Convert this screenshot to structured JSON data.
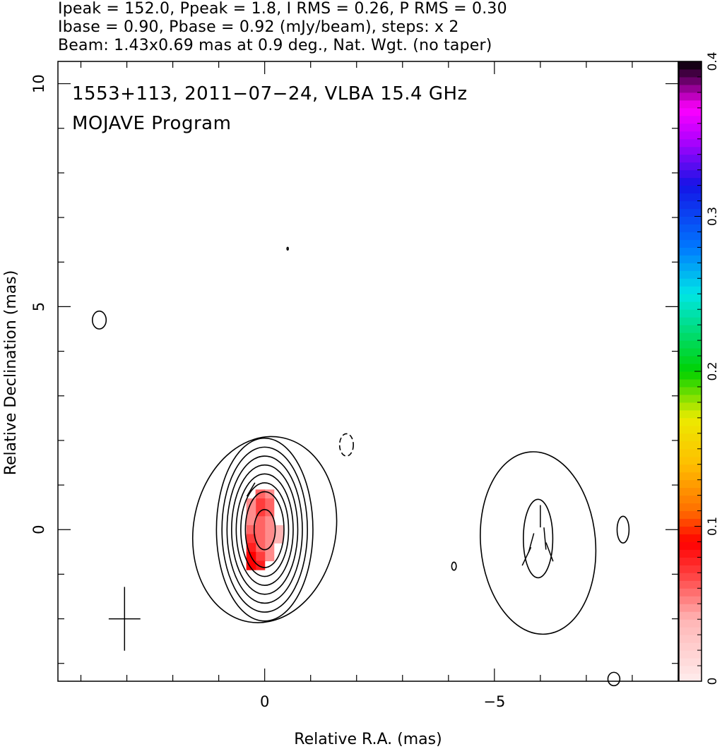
{
  "header": {
    "line1": "Ipeak = 152.0, Ppeak = 1.8, I RMS = 0.26, P RMS = 0.30",
    "line2": "Ibase = 0.90, Pbase = 0.92 (mJy/beam), steps: x 2",
    "line3": "Beam: 1.43x0.69 mas at 0.9 deg., Nat. Wgt. (no taper)"
  },
  "chart_data": {
    "type": "heatmap",
    "title": "1553+113, 2011−07−24, VLBA 15.4 GHz",
    "subtitle": "MOJAVE Program",
    "xlabel": "Relative R.A. (mas)",
    "ylabel": "Relative Declination (mas)",
    "xlim": [
      4.5,
      -9.0
    ],
    "ylim": [
      -3.4,
      10.5
    ],
    "xticks": [
      {
        "value": 0,
        "label": "0"
      },
      {
        "value": -5,
        "label": "−5"
      }
    ],
    "yticks": [
      {
        "value": 0,
        "label": "0"
      },
      {
        "value": 5,
        "label": "5"
      },
      {
        "value": 10,
        "label": "10"
      }
    ],
    "colorbar": {
      "range": [
        0,
        0.4
      ],
      "ticks": [
        {
          "value": 0,
          "label": "0"
        },
        {
          "value": 0.1,
          "label": "0.1"
        },
        {
          "value": 0.2,
          "label": "0.2"
        },
        {
          "value": 0.3,
          "label": "0.3"
        },
        {
          "value": 0.4,
          "label": "0.4"
        }
      ]
    },
    "core_contours": [
      {
        "x": 0.0,
        "y": 0.0,
        "rx": 1.55,
        "ry": 2.1,
        "tilt": 10
      },
      {
        "x": 0.0,
        "y": 0.0,
        "rx": 1.05,
        "ry": 2.05
      },
      {
        "x": 0.0,
        "y": 0.0,
        "rx": 0.93,
        "ry": 1.85
      },
      {
        "x": 0.0,
        "y": 0.0,
        "rx": 0.82,
        "ry": 1.65
      },
      {
        "x": 0.0,
        "y": 0.0,
        "rx": 0.72,
        "ry": 1.45
      },
      {
        "x": 0.0,
        "y": 0.0,
        "rx": 0.62,
        "ry": 1.25
      },
      {
        "x": 0.0,
        "y": 0.0,
        "rx": 0.52,
        "ry": 1.05
      },
      {
        "x": 0.0,
        "y": 0.0,
        "rx": 0.42,
        "ry": 0.85
      },
      {
        "x": 0.0,
        "y": 0.0,
        "rx": 0.23,
        "ry": 0.45
      }
    ],
    "jet_contours": [
      {
        "x": -5.95,
        "y": -0.3,
        "rx": 1.25,
        "ry": 2.05,
        "tilt": -5
      },
      {
        "x": -5.95,
        "y": -0.2,
        "rx": 0.32,
        "ry": 0.88
      }
    ],
    "small_contours": [
      {
        "x": 3.6,
        "y": 4.7,
        "rx": 0.15,
        "ry": 0.2,
        "dashed": false
      },
      {
        "x": -1.78,
        "y": 1.9,
        "rx": 0.15,
        "ry": 0.25,
        "dashed": true
      },
      {
        "x": -4.12,
        "y": -0.82,
        "rx": 0.05,
        "ry": 0.09,
        "dashed": false
      },
      {
        "x": -7.8,
        "y": 0.0,
        "rx": 0.13,
        "ry": 0.3,
        "dashed": false
      },
      {
        "x": -7.6,
        "y": -3.35,
        "rx": 0.13,
        "ry": 0.15,
        "dashed": false
      },
      {
        "x": -0.5,
        "y": 6.3,
        "rx": 0.015,
        "ry": 0.03,
        "dashed": false
      }
    ],
    "polarization_pixels": [
      {
        "x": -0.1,
        "y": 0.8,
        "level": 0.05
      },
      {
        "x": 0.1,
        "y": 0.8,
        "level": 0.06
      },
      {
        "x": -0.1,
        "y": 0.6,
        "level": 0.06
      },
      {
        "x": 0.1,
        "y": 0.6,
        "level": 0.07
      },
      {
        "x": 0.3,
        "y": 0.6,
        "level": 0.05
      },
      {
        "x": -0.1,
        "y": 0.4,
        "level": 0.06
      },
      {
        "x": 0.1,
        "y": 0.4,
        "level": 0.07
      },
      {
        "x": 0.3,
        "y": 0.4,
        "level": 0.05
      },
      {
        "x": -0.1,
        "y": 0.2,
        "level": 0.05
      },
      {
        "x": 0.1,
        "y": 0.2,
        "level": 0.06
      },
      {
        "x": 0.3,
        "y": 0.2,
        "level": 0.05
      },
      {
        "x": -0.3,
        "y": 0.0,
        "level": 0.04
      },
      {
        "x": -0.1,
        "y": 0.0,
        "level": 0.05
      },
      {
        "x": 0.1,
        "y": 0.0,
        "level": 0.06
      },
      {
        "x": 0.3,
        "y": 0.0,
        "level": 0.06
      },
      {
        "x": -0.3,
        "y": -0.2,
        "level": 0.04
      },
      {
        "x": -0.1,
        "y": -0.2,
        "level": 0.05
      },
      {
        "x": 0.1,
        "y": -0.2,
        "level": 0.06
      },
      {
        "x": 0.3,
        "y": -0.2,
        "level": 0.07
      },
      {
        "x": -0.1,
        "y": -0.4,
        "level": 0.05
      },
      {
        "x": 0.1,
        "y": -0.4,
        "level": 0.06
      },
      {
        "x": 0.3,
        "y": -0.4,
        "level": 0.08
      },
      {
        "x": -0.1,
        "y": -0.6,
        "level": 0.05
      },
      {
        "x": 0.1,
        "y": -0.6,
        "level": 0.07
      },
      {
        "x": 0.3,
        "y": -0.6,
        "level": 0.09
      },
      {
        "x": 0.1,
        "y": -0.8,
        "level": 0.08
      },
      {
        "x": 0.3,
        "y": -0.8,
        "level": 0.09
      }
    ],
    "evpa_vectors": [
      {
        "x": 0.3,
        "y": 0.9,
        "length": 0.35,
        "angle": 30
      },
      {
        "x": -6.0,
        "y": 0.3,
        "length": 0.5,
        "angle": 0
      },
      {
        "x": -6.1,
        "y": -0.2,
        "length": 0.5,
        "angle": -5
      },
      {
        "x": -5.8,
        "y": -0.3,
        "length": 0.45,
        "angle": 15
      },
      {
        "x": -5.7,
        "y": -0.6,
        "length": 0.45,
        "angle": 25
      },
      {
        "x": -6.2,
        "y": -0.5,
        "length": 0.45,
        "angle": -20
      }
    ],
    "beam_marker": {
      "x": 3.05,
      "y": -2.0,
      "major": 1.43,
      "minor": 0.69,
      "pa": 0.9
    }
  }
}
